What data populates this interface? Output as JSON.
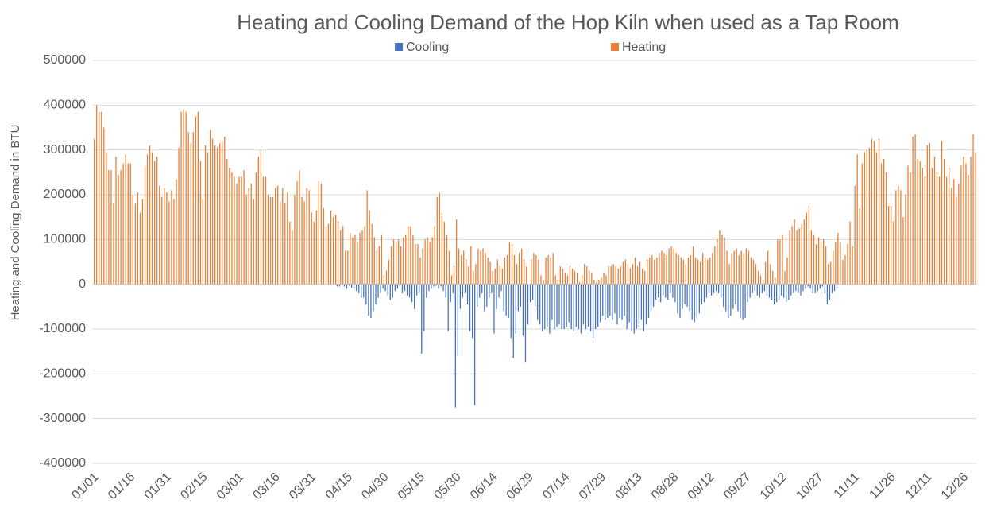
{
  "chart_data": {
    "type": "bar",
    "title": "Heating and Cooling Demand of the Hop Kiln when used as a Tap Room",
    "y_label": "Heating and Cooling Demand in BTU",
    "categories": [
      "01/01",
      null,
      null,
      null,
      null,
      null,
      null,
      null,
      null,
      null,
      null,
      null,
      null,
      null,
      null,
      "01/16",
      null,
      null,
      null,
      null,
      null,
      null,
      null,
      null,
      null,
      null,
      null,
      null,
      null,
      null,
      "01/31",
      null,
      null,
      null,
      null,
      null,
      null,
      null,
      null,
      null,
      null,
      null,
      null,
      null,
      null,
      "02/15",
      null,
      null,
      null,
      null,
      null,
      null,
      null,
      null,
      null,
      null,
      null,
      null,
      null,
      null,
      "03/01",
      null,
      null,
      null,
      null,
      null,
      null,
      null,
      null,
      null,
      null,
      null,
      null,
      null,
      null,
      "03/16",
      null,
      null,
      null,
      null,
      null,
      null,
      null,
      null,
      null,
      null,
      null,
      null,
      null,
      null,
      "03/31",
      null,
      null,
      null,
      null,
      null,
      null,
      null,
      null,
      null,
      null,
      null,
      null,
      null,
      null,
      "04/15",
      null,
      null,
      null,
      null,
      null,
      null,
      null,
      null,
      null,
      null,
      null,
      null,
      null,
      null,
      "04/30",
      null,
      null,
      null,
      null,
      null,
      null,
      null,
      null,
      null,
      null,
      null,
      null,
      null,
      null,
      "05/15",
      null,
      null,
      null,
      null,
      null,
      null,
      null,
      null,
      null,
      null,
      null,
      null,
      null,
      null,
      "05/30",
      null,
      null,
      null,
      null,
      null,
      null,
      null,
      null,
      null,
      null,
      null,
      null,
      null,
      null,
      "06/14",
      null,
      null,
      null,
      null,
      null,
      null,
      null,
      null,
      null,
      null,
      null,
      null,
      null,
      null,
      "06/29",
      null,
      null,
      null,
      null,
      null,
      null,
      null,
      null,
      null,
      null,
      null,
      null,
      null,
      null,
      "07/14",
      null,
      null,
      null,
      null,
      null,
      null,
      null,
      null,
      null,
      null,
      null,
      null,
      null,
      null,
      "07/29",
      null,
      null,
      null,
      null,
      null,
      null,
      null,
      null,
      null,
      null,
      null,
      null,
      null,
      null,
      "08/13",
      null,
      null,
      null,
      null,
      null,
      null,
      null,
      null,
      null,
      null,
      null,
      null,
      null,
      null,
      "08/28",
      null,
      null,
      null,
      null,
      null,
      null,
      null,
      null,
      null,
      null,
      null,
      null,
      null,
      null,
      "09/12",
      null,
      null,
      null,
      null,
      null,
      null,
      null,
      null,
      null,
      null,
      null,
      null,
      null,
      null,
      "09/27",
      null,
      null,
      null,
      null,
      null,
      null,
      null,
      null,
      null,
      null,
      null,
      null,
      null,
      null,
      "10/12",
      null,
      null,
      null,
      null,
      null,
      null,
      null,
      null,
      null,
      null,
      null,
      null,
      null,
      null,
      "10/27",
      null,
      null,
      null,
      null,
      null,
      null,
      null,
      null,
      null,
      null,
      null,
      null,
      null,
      null,
      "11/11",
      null,
      null,
      null,
      null,
      null,
      null,
      null,
      null,
      null,
      null,
      null,
      null,
      null,
      null,
      "11/26",
      null,
      null,
      null,
      null,
      null,
      null,
      null,
      null,
      null,
      null,
      null,
      null,
      null,
      null,
      "12/11",
      null,
      null,
      null,
      null,
      null,
      null,
      null,
      null,
      null,
      null,
      null,
      null,
      null,
      null,
      "12/26",
      null,
      null,
      null,
      null,
      null
    ],
    "series": [
      {
        "name": "Cooling",
        "color": "#4472c4",
        "values": [
          0,
          0,
          0,
          0,
          0,
          0,
          0,
          0,
          0,
          0,
          0,
          0,
          0,
          0,
          0,
          0,
          0,
          0,
          0,
          0,
          0,
          0,
          0,
          0,
          0,
          0,
          0,
          0,
          0,
          0,
          0,
          0,
          0,
          0,
          0,
          0,
          0,
          0,
          0,
          0,
          0,
          0,
          0,
          0,
          0,
          0,
          0,
          0,
          0,
          0,
          0,
          0,
          0,
          0,
          0,
          0,
          0,
          0,
          0,
          0,
          0,
          0,
          0,
          0,
          0,
          0,
          0,
          0,
          0,
          0,
          0,
          0,
          0,
          0,
          0,
          0,
          0,
          0,
          0,
          0,
          0,
          0,
          0,
          0,
          0,
          0,
          0,
          0,
          0,
          0,
          0,
          0,
          0,
          0,
          0,
          0,
          0,
          0,
          0,
          0,
          0,
          -5000,
          -5000,
          -3000,
          -5000,
          -10000,
          -3000,
          -8000,
          -10000,
          -15000,
          -20000,
          -30000,
          -30000,
          -45000,
          -70000,
          -75000,
          -60000,
          -45000,
          -30000,
          -20000,
          -10000,
          -15000,
          -25000,
          -35000,
          -30000,
          -15000,
          -10000,
          -5000,
          -20000,
          -15000,
          -25000,
          -30000,
          -40000,
          -55000,
          -25000,
          -20000,
          -155000,
          -105000,
          -30000,
          -15000,
          -10000,
          -5000,
          -3000,
          -10000,
          -5000,
          -15000,
          -30000,
          -105000,
          -40000,
          -20000,
          -275000,
          -160000,
          -55000,
          -30000,
          -20000,
          -45000,
          -105000,
          -120000,
          -270000,
          -50000,
          -30000,
          -20000,
          -60000,
          -50000,
          -30000,
          -20000,
          -110000,
          -55000,
          -30000,
          -15000,
          -60000,
          -70000,
          -75000,
          -120000,
          -165000,
          -110000,
          -60000,
          -50000,
          -115000,
          -175000,
          -90000,
          -40000,
          -35000,
          -50000,
          -80000,
          -90000,
          -105000,
          -100000,
          -95000,
          -110000,
          -80000,
          -100000,
          -95000,
          -90000,
          -100000,
          -100000,
          -95000,
          -85000,
          -100000,
          -105000,
          -95000,
          -100000,
          -110000,
          -90000,
          -100000,
          -95000,
          -105000,
          -120000,
          -100000,
          -95000,
          -85000,
          -70000,
          -80000,
          -75000,
          -70000,
          -80000,
          -65000,
          -90000,
          -75000,
          -80000,
          -70000,
          -100000,
          -85000,
          -105000,
          -110000,
          -100000,
          -95000,
          -80000,
          -105000,
          -90000,
          -75000,
          -60000,
          -50000,
          -35000,
          -30000,
          -40000,
          -25000,
          -30000,
          -35000,
          -20000,
          -30000,
          -40000,
          -65000,
          -75000,
          -55000,
          -45000,
          -50000,
          -60000,
          -80000,
          -85000,
          -75000,
          -65000,
          -45000,
          -40000,
          -30000,
          -20000,
          -25000,
          -20000,
          -15000,
          -20000,
          -30000,
          -50000,
          -60000,
          -75000,
          -70000,
          -55000,
          -45000,
          -60000,
          -75000,
          -80000,
          -75000,
          -40000,
          -30000,
          -20000,
          -15000,
          -25000,
          -30000,
          -20000,
          -15000,
          -25000,
          -30000,
          -35000,
          -45000,
          -40000,
          -35000,
          -25000,
          -30000,
          -40000,
          -35000,
          -25000,
          -20000,
          -15000,
          -20000,
          -25000,
          -15000,
          -10000,
          -5000,
          -10000,
          -20000,
          -20000,
          -15000,
          -10000,
          -5000,
          -20000,
          -45000,
          -35000,
          -20000,
          -15000,
          -10000,
          0,
          0,
          0,
          0,
          0,
          0,
          0,
          0,
          0,
          0,
          0,
          0,
          0,
          0,
          0,
          0,
          0,
          0,
          0,
          0,
          0,
          0,
          0,
          0,
          0,
          0,
          0,
          0,
          0,
          0,
          0,
          0,
          0,
          0,
          0,
          0,
          0,
          0,
          0,
          0,
          0,
          0,
          0,
          0,
          0,
          0,
          0,
          0,
          0,
          0,
          0,
          0,
          0,
          0,
          0,
          0,
          0
        ]
      },
      {
        "name": "Heating",
        "color": "#ed7d31",
        "values": [
          325000,
          400000,
          385000,
          385000,
          350000,
          295000,
          255000,
          255000,
          180000,
          285000,
          245000,
          255000,
          270000,
          290000,
          270000,
          270000,
          200000,
          180000,
          205000,
          160000,
          190000,
          265000,
          290000,
          310000,
          295000,
          275000,
          285000,
          220000,
          195000,
          215000,
          205000,
          185000,
          210000,
          190000,
          235000,
          305000,
          385000,
          390000,
          385000,
          340000,
          315000,
          340000,
          375000,
          385000,
          275000,
          190000,
          310000,
          295000,
          345000,
          325000,
          310000,
          305000,
          315000,
          320000,
          330000,
          280000,
          260000,
          250000,
          240000,
          225000,
          240000,
          240000,
          255000,
          200000,
          215000,
          225000,
          190000,
          250000,
          285000,
          300000,
          240000,
          240000,
          200000,
          195000,
          195000,
          215000,
          220000,
          185000,
          215000,
          180000,
          205000,
          140000,
          120000,
          200000,
          230000,
          255000,
          195000,
          185000,
          215000,
          210000,
          160000,
          140000,
          165000,
          230000,
          225000,
          170000,
          130000,
          135000,
          165000,
          150000,
          155000,
          140000,
          120000,
          130000,
          75000,
          75000,
          115000,
          105000,
          110000,
          95000,
          115000,
          120000,
          130000,
          210000,
          165000,
          135000,
          105000,
          75000,
          85000,
          110000,
          20000,
          30000,
          55000,
          85000,
          100000,
          95000,
          100000,
          85000,
          105000,
          110000,
          130000,
          130000,
          110000,
          90000,
          90000,
          60000,
          80000,
          100000,
          105000,
          95000,
          105000,
          130000,
          195000,
          205000,
          160000,
          140000,
          110000,
          75000,
          20000,
          40000,
          145000,
          80000,
          65000,
          75000,
          55000,
          40000,
          85000,
          30000,
          45000,
          80000,
          75000,
          80000,
          70000,
          60000,
          50000,
          30000,
          35000,
          55000,
          40000,
          35000,
          60000,
          65000,
          95000,
          90000,
          65000,
          45000,
          70000,
          80000,
          55000,
          40000,
          0,
          55000,
          70000,
          65000,
          55000,
          20000,
          10000,
          60000,
          65000,
          60000,
          70000,
          20000,
          10000,
          40000,
          35000,
          25000,
          20000,
          40000,
          35000,
          30000,
          25000,
          5000,
          20000,
          45000,
          40000,
          30000,
          25000,
          10000,
          5000,
          10000,
          15000,
          25000,
          20000,
          40000,
          40000,
          45000,
          40000,
          35000,
          40000,
          50000,
          55000,
          45000,
          35000,
          45000,
          60000,
          40000,
          50000,
          35000,
          30000,
          55000,
          60000,
          65000,
          55000,
          60000,
          70000,
          75000,
          70000,
          65000,
          80000,
          85000,
          80000,
          70000,
          65000,
          60000,
          55000,
          45000,
          60000,
          65000,
          85000,
          60000,
          55000,
          50000,
          70000,
          60000,
          55000,
          60000,
          70000,
          85000,
          100000,
          120000,
          110000,
          105000,
          75000,
          45000,
          70000,
          75000,
          80000,
          65000,
          75000,
          70000,
          80000,
          75000,
          60000,
          55000,
          45000,
          30000,
          20000,
          10000,
          50000,
          75000,
          45000,
          30000,
          15000,
          100000,
          100000,
          110000,
          30000,
          60000,
          120000,
          130000,
          145000,
          120000,
          125000,
          135000,
          145000,
          160000,
          175000,
          120000,
          110000,
          90000,
          105000,
          95000,
          100000,
          85000,
          45000,
          50000,
          75000,
          95000,
          115000,
          95000,
          55000,
          65000,
          90000,
          140000,
          85000,
          220000,
          290000,
          170000,
          270000,
          295000,
          300000,
          305000,
          325000,
          320000,
          295000,
          325000,
          270000,
          280000,
          250000,
          175000,
          175000,
          140000,
          210000,
          220000,
          210000,
          150000,
          200000,
          265000,
          250000,
          330000,
          335000,
          280000,
          275000,
          260000,
          240000,
          310000,
          315000,
          260000,
          285000,
          250000,
          240000,
          320000,
          280000,
          240000,
          260000,
          215000,
          235000,
          195000,
          225000,
          265000,
          285000,
          270000,
          245000,
          285000,
          335000,
          295000
        ]
      }
    ],
    "ylim": [
      -400000,
      500000
    ],
    "yticks": [
      -400000,
      -300000,
      -200000,
      -100000,
      0,
      100000,
      200000,
      300000,
      400000,
      500000
    ],
    "grid": true,
    "legend": "top"
  }
}
